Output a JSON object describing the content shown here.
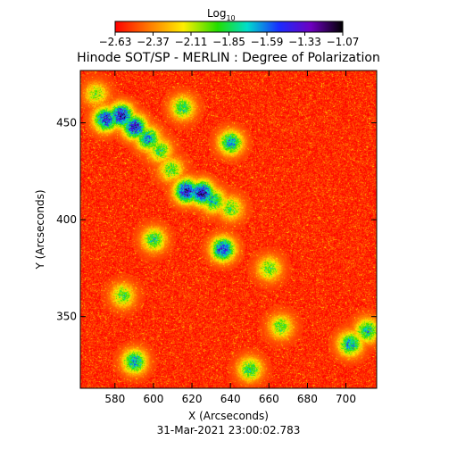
{
  "chart_data": {
    "type": "heatmap",
    "title": "Hinode SOT/SP - MERLIN : Degree of Polarization",
    "xlabel": "X (Arcseconds)",
    "ylabel": "Y (Arcseconds)",
    "timestamp": "31-Mar-2021 23:00:02.783",
    "colorbar": {
      "label_main": "Log",
      "label_sub": "10",
      "colormap": "rainbow (red → yellow → green → cyan → blue → purple → black)",
      "range": [
        -2.63,
        -1.07
      ],
      "tick_labels": [
        "-2.63",
        "-2.37",
        "-2.11",
        "-1.85",
        "-1.59",
        "-1.33",
        "-1.07"
      ]
    },
    "xaxis": {
      "range": [
        562,
        716
      ],
      "ticks": [
        580,
        600,
        620,
        640,
        660,
        680,
        700
      ],
      "tick_labels": [
        "580",
        "600",
        "620",
        "640",
        "660",
        "680",
        "700"
      ]
    },
    "yaxis": {
      "range": [
        313,
        477
      ],
      "ticks": [
        350,
        400,
        450
      ],
      "tick_labels": [
        "350",
        "400",
        "450"
      ]
    },
    "background_value": -2.55,
    "features": [
      {
        "x": 575,
        "y": 452,
        "value": -1.35
      },
      {
        "x": 583,
        "y": 454,
        "value": -1.25
      },
      {
        "x": 590,
        "y": 448,
        "value": -1.3
      },
      {
        "x": 597,
        "y": 442,
        "value": -1.6
      },
      {
        "x": 603,
        "y": 436,
        "value": -1.85
      },
      {
        "x": 609,
        "y": 426,
        "value": -1.9
      },
      {
        "x": 617,
        "y": 415,
        "value": -1.25
      },
      {
        "x": 625,
        "y": 414,
        "value": -1.2
      },
      {
        "x": 631,
        "y": 410,
        "value": -1.7
      },
      {
        "x": 640,
        "y": 406,
        "value": -1.9
      },
      {
        "x": 636,
        "y": 385,
        "value": -1.4
      },
      {
        "x": 600,
        "y": 390,
        "value": -1.8
      },
      {
        "x": 584,
        "y": 361,
        "value": -1.9
      },
      {
        "x": 660,
        "y": 375,
        "value": -1.9
      },
      {
        "x": 640,
        "y": 440,
        "value": -1.6
      },
      {
        "x": 615,
        "y": 458,
        "value": -1.8
      },
      {
        "x": 590,
        "y": 327,
        "value": -1.6
      },
      {
        "x": 650,
        "y": 323,
        "value": -1.8
      },
      {
        "x": 702,
        "y": 336,
        "value": -1.6
      },
      {
        "x": 711,
        "y": 343,
        "value": -1.7
      },
      {
        "x": 570,
        "y": 465,
        "value": -2.0
      },
      {
        "x": 666,
        "y": 345,
        "value": -1.9
      }
    ]
  }
}
